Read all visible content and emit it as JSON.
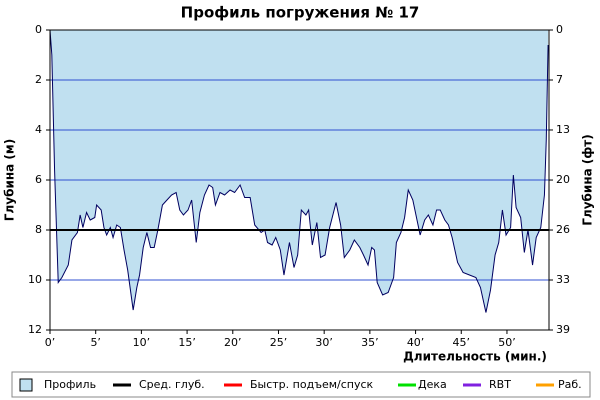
{
  "chart_data": {
    "type": "area",
    "title": "Профиль погружения № 17",
    "x_label": "Длительность (мин.)",
    "y_label": "Глубина (м)",
    "y2_label": "Глубина (фт)",
    "xlim": [
      0,
      54.6
    ],
    "ylim": [
      12,
      0
    ],
    "y2lim": [
      39.37,
      0
    ],
    "xticks": [
      {
        "value": 0,
        "label": "0’"
      },
      {
        "value": 5,
        "label": "5’"
      },
      {
        "value": 10,
        "label": "10’"
      },
      {
        "value": 15,
        "label": "15’"
      },
      {
        "value": 20,
        "label": "20’"
      },
      {
        "value": 25,
        "label": "25’"
      },
      {
        "value": 30,
        "label": "30’"
      },
      {
        "value": 35,
        "label": "35’"
      },
      {
        "value": 40,
        "label": "40’"
      },
      {
        "value": 45,
        "label": "45’"
      },
      {
        "value": 50,
        "label": "50’"
      }
    ],
    "yticks": [
      0,
      2,
      4,
      6,
      8,
      10,
      12
    ],
    "y2ticks": [
      0,
      {
        "value": 6.56,
        "label": "7"
      },
      {
        "value": 13.12,
        "label": "13"
      },
      {
        "value": 19.69,
        "label": "20"
      },
      {
        "value": 26.25,
        "label": "26"
      },
      {
        "value": 32.81,
        "label": "33"
      },
      {
        "value": 39.37,
        "label": "39"
      }
    ],
    "grid": true,
    "grid_color": "#3050d0",
    "x": [
      0,
      0.2,
      0.5,
      0.9,
      1.3,
      2.0,
      2.4,
      3.0,
      3.3,
      3.6,
      4.0,
      4.4,
      4.9,
      5.1,
      5.6,
      5.9,
      6.2,
      6.6,
      6.9,
      7.3,
      7.7,
      8.1,
      8.5,
      9.1,
      9.5,
      9.8,
      10.2,
      10.6,
      11.0,
      11.4,
      11.8,
      12.3,
      12.8,
      13.3,
      13.8,
      14.2,
      14.6,
      15.1,
      15.5,
      16.0,
      16.4,
      16.9,
      17.4,
      17.8,
      18.1,
      18.6,
      19.1,
      19.7,
      20.2,
      20.8,
      21.3,
      21.9,
      22.4,
      23.1,
      23.5,
      23.8,
      24.3,
      24.7,
      25.2,
      25.6,
      26.2,
      26.7,
      27.1,
      27.5,
      28.0,
      28.3,
      28.7,
      29.2,
      29.6,
      30.1,
      30.6,
      31.3,
      31.8,
      32.2,
      32.8,
      33.3,
      33.9,
      34.3,
      34.8,
      35.2,
      35.5,
      35.8,
      36.4,
      37.0,
      37.6,
      37.9,
      38.4,
      38.8,
      39.2,
      39.7,
      40.1,
      40.5,
      41.0,
      41.4,
      41.9,
      42.3,
      42.7,
      43.2,
      43.6,
      44.0,
      44.6,
      45.2,
      45.9,
      46.6,
      47.1,
      47.7,
      48.2,
      48.7,
      49.1,
      49.5,
      49.9,
      50.4,
      50.7,
      51.0,
      51.5,
      51.9,
      52.3,
      52.8,
      53.2,
      53.7,
      54.1,
      54.3,
      54.5
    ],
    "series": [
      {
        "name": "Профиль",
        "color": "#c0e0f0",
        "line_color": "#000060",
        "values": [
          0,
          1.0,
          5.6,
          10.1,
          9.9,
          9.4,
          8.4,
          8.1,
          7.4,
          7.9,
          7.3,
          7.6,
          7.5,
          7.0,
          7.2,
          7.9,
          8.2,
          7.9,
          8.3,
          7.8,
          7.9,
          8.8,
          9.6,
          11.2,
          10.3,
          9.8,
          8.7,
          8.1,
          8.7,
          8.7,
          8.0,
          7.0,
          6.8,
          6.6,
          6.5,
          7.2,
          7.4,
          7.2,
          6.8,
          8.5,
          7.3,
          6.6,
          6.2,
          6.3,
          7.0,
          6.5,
          6.6,
          6.4,
          6.5,
          6.2,
          6.7,
          6.7,
          7.8,
          8.1,
          8.0,
          8.5,
          8.6,
          8.3,
          8.8,
          9.8,
          8.5,
          9.5,
          9.0,
          7.2,
          7.4,
          7.2,
          8.6,
          7.7,
          9.1,
          9.0,
          7.9,
          6.9,
          7.8,
          9.1,
          8.8,
          8.4,
          8.7,
          9.0,
          9.4,
          8.7,
          8.8,
          10.1,
          10.6,
          10.5,
          9.9,
          8.5,
          8.1,
          7.5,
          6.4,
          6.8,
          7.5,
          8.2,
          7.6,
          7.4,
          7.8,
          7.2,
          7.2,
          7.6,
          7.8,
          8.3,
          9.3,
          9.7,
          9.8,
          9.9,
          10.3,
          11.3,
          10.4,
          9.0,
          8.5,
          7.2,
          8.2,
          7.9,
          5.8,
          7.1,
          7.5,
          8.9,
          8.0,
          9.4,
          8.3,
          7.9,
          6.6,
          4.4,
          0.6
        ]
      }
    ],
    "average_depth": {
      "name": "Сред. глуб.",
      "value": 8.0,
      "color": "#000000"
    },
    "legend_items": [
      {
        "name": "Быстр. подъем/спуск",
        "color": "#ff0000"
      },
      {
        "name": "Дека",
        "color": "#00e000"
      },
      {
        "name": "RBT",
        "color": "#8020e0"
      },
      {
        "name": "Раб.",
        "color": "#ffa000"
      }
    ]
  }
}
